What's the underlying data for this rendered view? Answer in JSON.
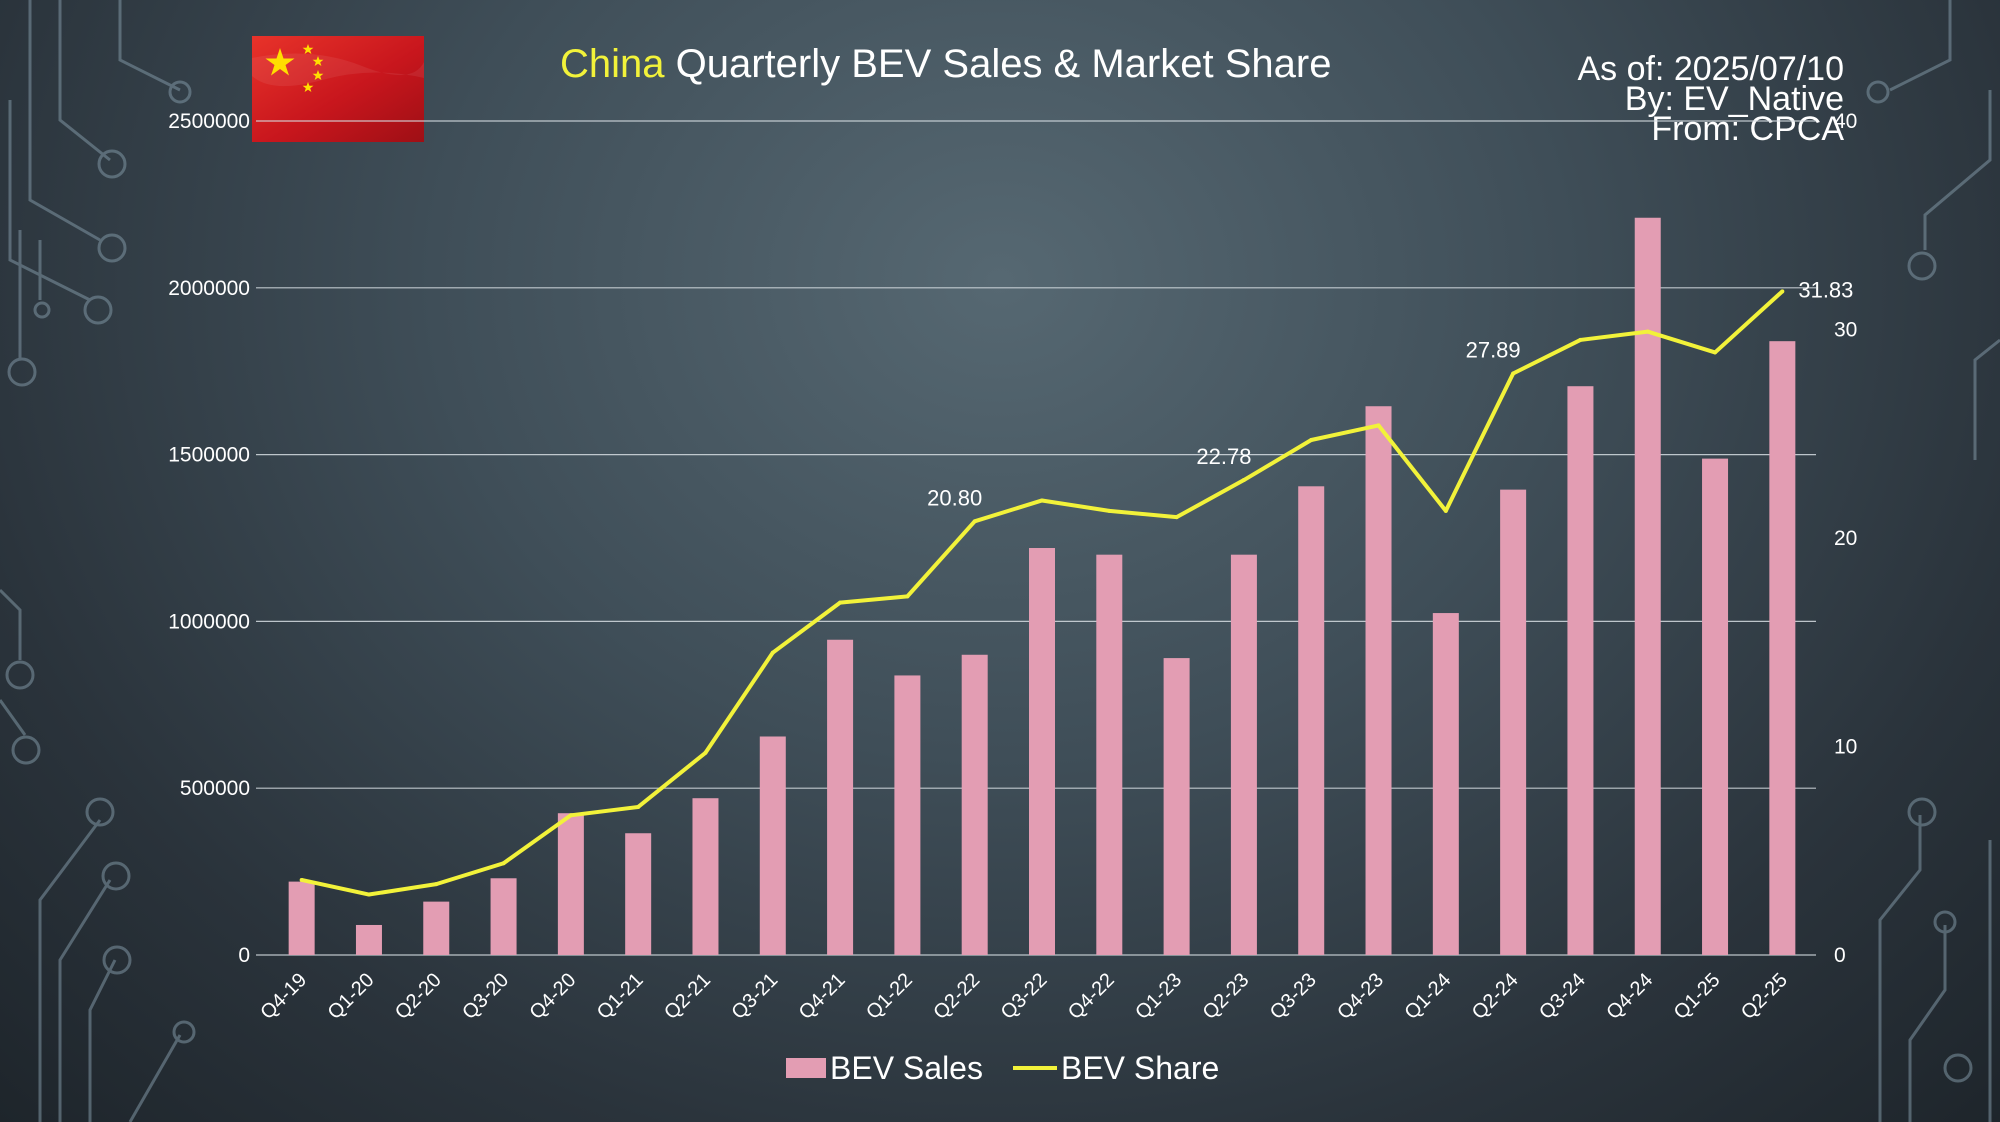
{
  "header": {
    "title_accent": "China",
    "title_rest": " Quarterly BEV Sales & Market Share",
    "as_of": "As of: 2025/07/10",
    "by": "By: EV_Native",
    "from": "From: CPCA"
  },
  "flag": {
    "icon": "china-flag-icon",
    "color": "#de2910",
    "star_color": "#ffde00"
  },
  "legend": {
    "bar_label": "BEV Sales",
    "line_label": "BEV Share"
  },
  "colors": {
    "bar": "#e39db3",
    "line": "#f2f23a",
    "grid": "#d6dde2",
    "text": "#ffffff"
  },
  "chart_data": {
    "type": "bar",
    "title": "China Quarterly BEV Sales & Market Share",
    "categories": [
      "Q4-19",
      "Q1-20",
      "Q2-20",
      "Q3-20",
      "Q4-20",
      "Q1-21",
      "Q2-21",
      "Q3-21",
      "Q4-21",
      "Q1-22",
      "Q2-22",
      "Q3-22",
      "Q4-22",
      "Q1-23",
      "Q2-23",
      "Q3-23",
      "Q4-23",
      "Q1-24",
      "Q2-24",
      "Q3-24",
      "Q4-24",
      "Q1-25",
      "Q2-25"
    ],
    "series": [
      {
        "name": "BEV Sales",
        "type": "bar",
        "axis": "left",
        "values": [
          220000,
          90000,
          160000,
          230000,
          425000,
          365000,
          470000,
          655000,
          945000,
          838000,
          900000,
          1220000,
          1200000,
          890000,
          1200000,
          1405000,
          1645000,
          1025000,
          1395000,
          1705000,
          2210000,
          1488000,
          1840000
        ]
      },
      {
        "name": "BEV Share",
        "type": "line",
        "axis": "right",
        "values": [
          3.6,
          2.9,
          3.4,
          4.4,
          6.7,
          7.1,
          9.7,
          14.5,
          16.9,
          17.2,
          20.8,
          21.8,
          21.3,
          21.0,
          22.78,
          24.7,
          25.4,
          21.3,
          27.89,
          29.5,
          29.9,
          28.9,
          31.83
        ]
      }
    ],
    "y_left": {
      "ylim": [
        0,
        2500000
      ],
      "ticks": [
        "0",
        "500000",
        "1000000",
        "1500000",
        "2000000",
        "2500000"
      ]
    },
    "y_right": {
      "ylim": [
        0,
        40
      ],
      "ticks": [
        "0",
        "10",
        "20",
        "30",
        "40"
      ]
    },
    "line_labels": [
      {
        "index": 10,
        "text": "20.80"
      },
      {
        "index": 14,
        "text": "22.78"
      },
      {
        "index": 18,
        "text": "27.89"
      },
      {
        "index": 22,
        "text": "31.83"
      }
    ],
    "grid": true,
    "legend_position": "bottom"
  }
}
